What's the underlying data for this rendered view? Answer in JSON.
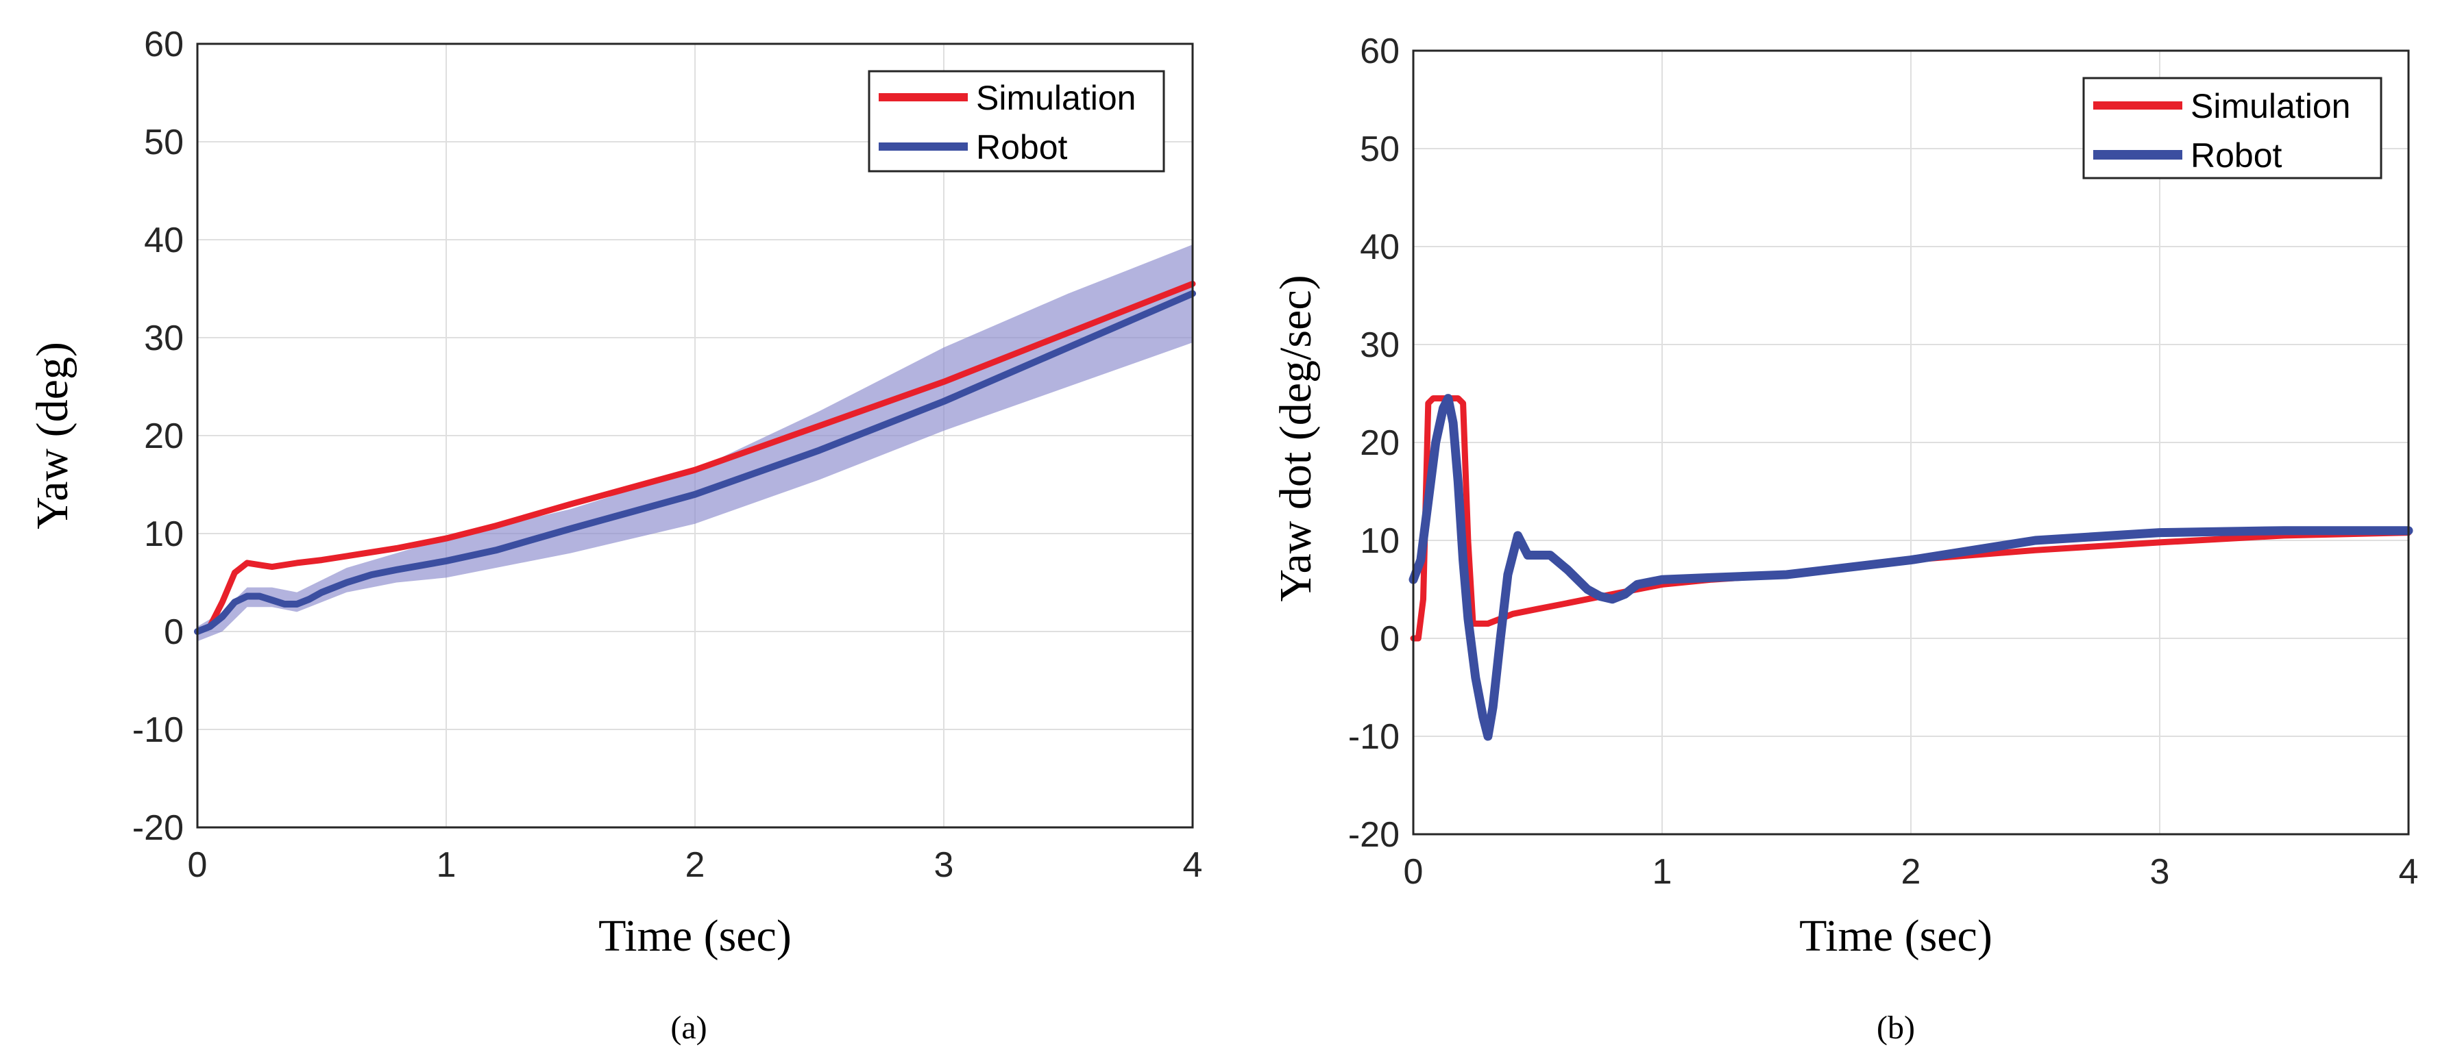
{
  "chart_data": [
    {
      "id": "a",
      "type": "line",
      "caption": "(a)",
      "xlabel": "Time (sec)",
      "ylabel": "Yaw (deg)",
      "xlim": [
        0,
        4
      ],
      "ylim": [
        -20,
        60
      ],
      "xticks": [
        "0",
        "1",
        "2",
        "3",
        "4"
      ],
      "yticks": [
        "-20",
        "-10",
        "0",
        "10",
        "20",
        "30",
        "40",
        "50",
        "60"
      ],
      "grid": true,
      "legend_position": "top-right",
      "band": {
        "series": "Robot",
        "color": "#8a8acc",
        "x": [
          0,
          0.1,
          0.2,
          0.3,
          0.4,
          0.6,
          0.8,
          1.0,
          1.5,
          2.0,
          2.5,
          3.0,
          3.5,
          4.0
        ],
        "upper": [
          0.5,
          2.0,
          4.5,
          4.5,
          4.0,
          6.5,
          8.0,
          9.5,
          12.5,
          16.5,
          22.5,
          29.0,
          34.5,
          39.5
        ],
        "lower": [
          -1.0,
          0.0,
          2.5,
          2.5,
          2.0,
          4.0,
          5.0,
          5.5,
          8.0,
          11.0,
          15.5,
          20.5,
          25.0,
          29.5
        ]
      },
      "series": [
        {
          "name": "Simulation",
          "color": "#e8202a",
          "width": 9,
          "x": [
            0,
            0.05,
            0.1,
            0.15,
            0.2,
            0.25,
            0.3,
            0.4,
            0.5,
            0.6,
            0.8,
            1.0,
            1.2,
            1.5,
            2.0,
            2.5,
            3.0,
            3.5,
            4.0
          ],
          "y": [
            0,
            0.5,
            3.0,
            6.0,
            7.0,
            6.8,
            6.6,
            7.0,
            7.3,
            7.7,
            8.5,
            9.5,
            10.8,
            13.0,
            16.5,
            21.0,
            25.5,
            30.5,
            35.5
          ]
        },
        {
          "name": "Robot",
          "color": "#3b4ea0",
          "width": 10,
          "x": [
            0,
            0.05,
            0.1,
            0.15,
            0.2,
            0.25,
            0.3,
            0.35,
            0.4,
            0.45,
            0.5,
            0.6,
            0.7,
            0.8,
            1.0,
            1.2,
            1.5,
            2.0,
            2.5,
            3.0,
            3.5,
            4.0
          ],
          "y": [
            0,
            0.5,
            1.5,
            3.0,
            3.6,
            3.6,
            3.2,
            2.8,
            2.8,
            3.3,
            4.0,
            5.0,
            5.8,
            6.3,
            7.2,
            8.3,
            10.5,
            14.0,
            18.5,
            23.5,
            29.0,
            34.5
          ]
        }
      ]
    },
    {
      "id": "b",
      "type": "line",
      "caption": "(b)",
      "xlabel": "Time (sec)",
      "ylabel": "Yaw dot (deg/sec)",
      "xlim": [
        0,
        4
      ],
      "ylim": [
        -20,
        60
      ],
      "xticks": [
        "0",
        "1",
        "2",
        "3",
        "4"
      ],
      "yticks": [
        "-20",
        "-10",
        "0",
        "10",
        "20",
        "30",
        "40",
        "50",
        "60"
      ],
      "grid": true,
      "legend_position": "top-right",
      "series": [
        {
          "name": "Simulation",
          "color": "#e8202a",
          "width": 9,
          "x": [
            0,
            0.02,
            0.04,
            0.06,
            0.08,
            0.1,
            0.14,
            0.18,
            0.2,
            0.22,
            0.24,
            0.26,
            0.3,
            0.35,
            0.4,
            0.5,
            0.6,
            0.8,
            1.0,
            1.2,
            1.5,
            2.0,
            2.5,
            3.0,
            3.5,
            4.0
          ],
          "y": [
            0,
            0,
            4,
            24,
            24.5,
            24.5,
            24.5,
            24.5,
            24,
            10,
            1.5,
            1.5,
            1.5,
            2.0,
            2.5,
            3.0,
            3.5,
            4.5,
            5.5,
            6.0,
            6.5,
            8.0,
            9.0,
            9.8,
            10.5,
            10.8
          ]
        },
        {
          "name": "Robot",
          "color": "#3b4ea0",
          "width": 13,
          "x": [
            0,
            0.03,
            0.06,
            0.09,
            0.12,
            0.14,
            0.16,
            0.18,
            0.2,
            0.22,
            0.25,
            0.28,
            0.3,
            0.32,
            0.35,
            0.38,
            0.42,
            0.46,
            0.5,
            0.55,
            0.62,
            0.7,
            0.75,
            0.8,
            0.85,
            0.9,
            1.0,
            1.2,
            1.5,
            2.0,
            2.5,
            3.0,
            3.5,
            4.0
          ],
          "y": [
            6,
            8,
            14,
            20,
            23.5,
            24.5,
            22,
            16,
            8,
            2,
            -4,
            -8,
            -10,
            -7,
            0,
            6.5,
            10.5,
            8.5,
            8.5,
            8.5,
            7,
            5,
            4.3,
            4,
            4.5,
            5.5,
            6.0,
            6.2,
            6.5,
            8.0,
            10.0,
            10.8,
            11.0,
            11.0
          ]
        }
      ]
    }
  ]
}
